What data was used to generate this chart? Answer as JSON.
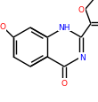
{
  "bg_color": "#ffffff",
  "bond_color": "#000000",
  "atom_colors": {
    "O": "#ff0000",
    "N": "#0000ff",
    "C": "#000000"
  },
  "line_width": 1.0,
  "font_size": 6.5,
  "figsize": [
    1.1,
    1.16
  ],
  "dpi": 100
}
